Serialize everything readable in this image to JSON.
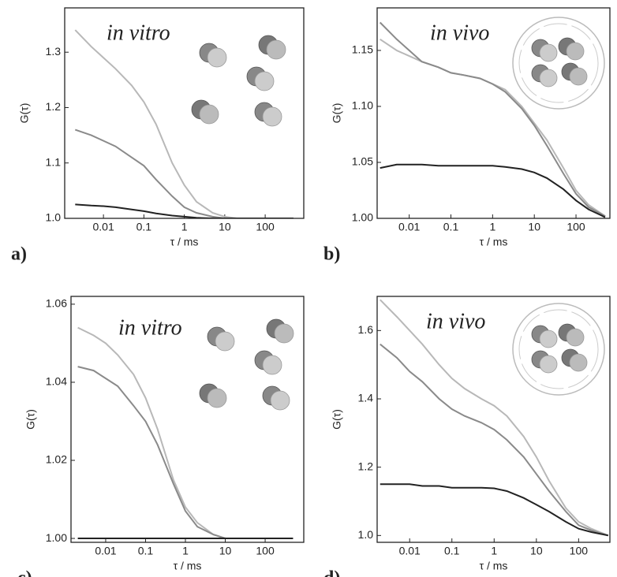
{
  "chart_data": [
    {
      "type": "line",
      "panel_label": "a)",
      "annotation": "in vitro",
      "xlabel": "τ / ms",
      "ylabel": "G(τ)",
      "log_x": true,
      "xlim": [
        0.0011,
        900
      ],
      "xticks": [
        0.01,
        0.1,
        1,
        10,
        100
      ],
      "ylim": [
        1.0,
        1.38
      ],
      "yticks": [
        {
          "value": 1.0,
          "label": "1.0"
        },
        {
          "value": 1.1,
          "label": "1.1"
        },
        1.2,
        1.3
      ],
      "x": [
        0.002,
        0.005,
        0.01,
        0.02,
        0.05,
        0.1,
        0.2,
        0.5,
        1,
        2,
        5,
        10,
        20,
        50,
        100,
        200,
        500
      ],
      "series": [
        {
          "color": "#b8b8b8",
          "values": [
            1.34,
            1.31,
            1.29,
            1.27,
            1.24,
            1.21,
            1.17,
            1.1,
            1.06,
            1.03,
            1.01,
            1.003,
            1.0,
            1.0,
            1.0,
            1.0,
            1.0
          ]
        },
        {
          "color": "#8a8a8a",
          "values": [
            1.16,
            1.15,
            1.14,
            1.13,
            1.11,
            1.095,
            1.07,
            1.04,
            1.02,
            1.01,
            1.003,
            1.0,
            1.0,
            1.0,
            1.0,
            1.0,
            1.0
          ]
        },
        {
          "color": "#222222",
          "values": [
            1.025,
            1.023,
            1.022,
            1.02,
            1.016,
            1.013,
            1.009,
            1.005,
            1.003,
            1.001,
            1.0,
            1.0,
            1.0,
            1.0,
            1.0,
            1.0,
            1.0
          ]
        }
      ]
    },
    {
      "type": "line",
      "panel_label": "b)",
      "annotation": "in vivo",
      "xlabel": "τ / ms",
      "ylabel": "G(τ)",
      "log_x": true,
      "xlim": [
        0.0017,
        650
      ],
      "xticks": [
        0.01,
        0.1,
        1,
        10,
        100
      ],
      "ylim": [
        1.0,
        1.188
      ],
      "yticks": [
        {
          "value": 1.0,
          "label": "1.00"
        },
        1.05,
        {
          "value": 1.1,
          "label": "1.10"
        },
        1.15
      ],
      "x": [
        0.002,
        0.005,
        0.01,
        0.02,
        0.05,
        0.1,
        0.2,
        0.5,
        1,
        2,
        5,
        10,
        20,
        50,
        100,
        200,
        500
      ],
      "series": [
        {
          "color": "#b8b8b8",
          "values": [
            1.16,
            1.15,
            1.145,
            1.14,
            1.135,
            1.13,
            1.128,
            1.125,
            1.12,
            1.115,
            1.1,
            1.085,
            1.07,
            1.045,
            1.025,
            1.012,
            1.002
          ]
        },
        {
          "color": "#8a8a8a",
          "values": [
            1.175,
            1.16,
            1.15,
            1.14,
            1.135,
            1.13,
            1.128,
            1.125,
            1.12,
            1.113,
            1.098,
            1.083,
            1.065,
            1.04,
            1.022,
            1.01,
            1.002
          ]
        },
        {
          "color": "#222222",
          "values": [
            1.045,
            1.048,
            1.048,
            1.048,
            1.047,
            1.047,
            1.047,
            1.047,
            1.047,
            1.046,
            1.044,
            1.041,
            1.036,
            1.026,
            1.016,
            1.008,
            1.001
          ]
        }
      ]
    },
    {
      "type": "line",
      "panel_label": "c)",
      "annotation": "in vitro",
      "xlabel": "τ / ms",
      "ylabel": "G(τ)",
      "log_x": true,
      "xlim": [
        0.00135,
        930
      ],
      "xticks": [
        0.01,
        0.1,
        1,
        10,
        100
      ],
      "ylim": [
        0.999,
        1.062
      ],
      "yticks": [
        {
          "value": 1.0,
          "label": "1.00"
        },
        1.02,
        1.04,
        1.06
      ],
      "x": [
        0.002,
        0.005,
        0.01,
        0.02,
        0.05,
        0.1,
        0.2,
        0.5,
        1,
        2,
        5,
        10,
        20,
        50,
        100,
        200,
        500
      ],
      "series": [
        {
          "color": "#b8b8b8",
          "values": [
            1.054,
            1.052,
            1.05,
            1.047,
            1.042,
            1.036,
            1.028,
            1.015,
            1.008,
            1.004,
            1.001,
            1.0,
            1.0,
            1.0,
            1.0,
            1.0,
            1.0
          ]
        },
        {
          "color": "#8a8a8a",
          "values": [
            1.044,
            1.043,
            1.041,
            1.039,
            1.034,
            1.03,
            1.024,
            1.014,
            1.007,
            1.003,
            1.001,
            1.0,
            1.0,
            1.0,
            1.0,
            1.0,
            1.0
          ]
        },
        {
          "color": "#222222",
          "values": [
            1.0,
            1.0,
            1.0,
            1.0,
            1.0,
            1.0,
            1.0,
            1.0,
            1.0,
            1.0,
            1.0,
            1.0,
            1.0,
            1.0,
            1.0,
            1.0,
            1.0
          ]
        }
      ]
    },
    {
      "type": "line",
      "panel_label": "d)",
      "annotation": "in vivo",
      "xlabel": "τ / ms",
      "ylabel": "G(τ)",
      "log_x": true,
      "xlim": [
        0.0017,
        550
      ],
      "xticks": [
        0.01,
        0.1,
        1,
        10,
        100
      ],
      "ylim": [
        0.98,
        1.7
      ],
      "yticks": [
        {
          "value": 1.0,
          "label": "1.0"
        },
        1.2,
        1.4,
        1.6
      ],
      "x": [
        0.002,
        0.005,
        0.01,
        0.02,
        0.05,
        0.1,
        0.2,
        0.5,
        1,
        2,
        5,
        10,
        20,
        50,
        100,
        200,
        500
      ],
      "series": [
        {
          "color": "#b8b8b8",
          "values": [
            1.69,
            1.64,
            1.6,
            1.56,
            1.5,
            1.46,
            1.43,
            1.4,
            1.38,
            1.35,
            1.29,
            1.23,
            1.16,
            1.08,
            1.04,
            1.02,
            1.0
          ]
        },
        {
          "color": "#8a8a8a",
          "values": [
            1.56,
            1.52,
            1.48,
            1.45,
            1.4,
            1.37,
            1.35,
            1.33,
            1.31,
            1.28,
            1.23,
            1.18,
            1.13,
            1.07,
            1.03,
            1.015,
            1.0
          ]
        },
        {
          "color": "#222222",
          "values": [
            1.15,
            1.15,
            1.15,
            1.145,
            1.145,
            1.14,
            1.14,
            1.14,
            1.138,
            1.13,
            1.11,
            1.09,
            1.07,
            1.04,
            1.02,
            1.01,
            1.0
          ]
        }
      ]
    }
  ]
}
